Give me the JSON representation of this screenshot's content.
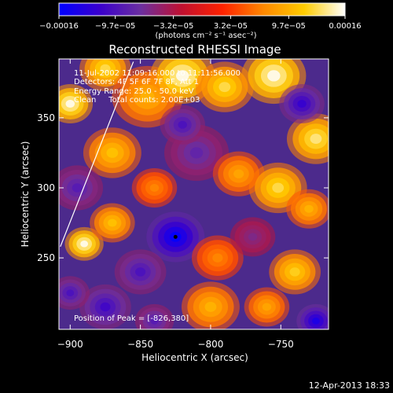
{
  "chart_data": {
    "type": "heatmap",
    "title": "Reconstructed RHESSI Image",
    "xlabel": "Heliocentric X (arcsec)",
    "ylabel": "Heliocentric Y (arcsec)",
    "xlim": [
      -908,
      -716
    ],
    "ylim": [
      199,
      392
    ],
    "x_ticks": [
      {
        "value": -900,
        "label": "−900"
      },
      {
        "value": -850,
        "label": "−850"
      },
      {
        "value": -800,
        "label": "−800"
      },
      {
        "value": -750,
        "label": "−750"
      }
    ],
    "y_ticks": [
      {
        "value": 250,
        "label": "250"
      },
      {
        "value": 300,
        "label": "300"
      },
      {
        "value": 350,
        "label": "350"
      }
    ],
    "colorbar": {
      "min": -0.00016,
      "max": 0.00016,
      "unit_label": "(photons cm⁻² s⁻¹ asec⁻²)",
      "ticks": [
        {
          "value": -0.00016,
          "label": "−0.00016"
        },
        {
          "value": -9.7e-05,
          "label": "−9.7e−05"
        },
        {
          "value": -3.2e-05,
          "label": "−3.2e−05"
        },
        {
          "value": 3.2e-05,
          "label": "3.2e−05"
        },
        {
          "value": 9.7e-05,
          "label": "9.7e−05"
        },
        {
          "value": 0.00016,
          "label": "0.00016"
        }
      ],
      "colors": [
        "#0000ff",
        "#3a00cc",
        "#6b2fa0",
        "#c01030",
        "#ff2200",
        "#ff8800",
        "#ffcc00",
        "#ffffff"
      ]
    },
    "annotations": [
      "11-Jul-2002 11:09:16.000 to 11:11:56.000",
      "Detectors: 4F 5F 6F 7F 8F, Att 1",
      "Energy Range: 25.0 - 50.0 keV",
      "Clean     Total counts: 2.00E+03"
    ],
    "peak_label": "Position of Peak = [-826,380]",
    "peak": {
      "x": -826,
      "y": 380
    },
    "minimum_marker": {
      "x": -825,
      "y": 265
    },
    "limb": {
      "x_start": -907,
      "y_start": 258,
      "x_end": -855,
      "y_end": 390
    },
    "blobs": [
      {
        "x": -900,
        "y": 360,
        "r": 14,
        "v": 0.00016
      },
      {
        "x": -875,
        "y": 385,
        "r": 16,
        "v": 0.00013
      },
      {
        "x": -845,
        "y": 365,
        "r": 22,
        "v": 0.0001
      },
      {
        "x": -820,
        "y": 380,
        "r": 20,
        "v": 0.00016
      },
      {
        "x": -790,
        "y": 372,
        "r": 18,
        "v": 0.00013
      },
      {
        "x": -755,
        "y": 380,
        "r": 20,
        "v": 0.00016
      },
      {
        "x": -725,
        "y": 335,
        "r": 18,
        "v": 0.00014
      },
      {
        "x": -735,
        "y": 360,
        "r": 14,
        "v": -0.00012
      },
      {
        "x": -870,
        "y": 325,
        "r": 18,
        "v": 0.00011
      },
      {
        "x": -840,
        "y": 300,
        "r": 14,
        "v": 7e-05
      },
      {
        "x": -810,
        "y": 325,
        "r": 20,
        "v": -8e-05
      },
      {
        "x": -780,
        "y": 310,
        "r": 16,
        "v": 9e-05
      },
      {
        "x": -752,
        "y": 300,
        "r": 18,
        "v": 0.00013
      },
      {
        "x": -730,
        "y": 285,
        "r": 14,
        "v": 0.0001
      },
      {
        "x": -895,
        "y": 300,
        "r": 16,
        "v": -9e-05
      },
      {
        "x": -890,
        "y": 260,
        "r": 12,
        "v": 0.00016
      },
      {
        "x": -870,
        "y": 275,
        "r": 14,
        "v": 0.00011
      },
      {
        "x": -825,
        "y": 265,
        "r": 18,
        "v": -0.00016
      },
      {
        "x": -850,
        "y": 240,
        "r": 16,
        "v": -0.0001
      },
      {
        "x": -795,
        "y": 250,
        "r": 16,
        "v": 7e-05
      },
      {
        "x": -770,
        "y": 265,
        "r": 14,
        "v": -6e-05
      },
      {
        "x": -740,
        "y": 240,
        "r": 16,
        "v": 0.00012
      },
      {
        "x": -800,
        "y": 215,
        "r": 18,
        "v": 0.0001
      },
      {
        "x": -760,
        "y": 215,
        "r": 14,
        "v": 9e-05
      },
      {
        "x": -875,
        "y": 215,
        "r": 16,
        "v": -0.00011
      },
      {
        "x": -900,
        "y": 225,
        "r": 12,
        "v": -0.0001
      },
      {
        "x": -840,
        "y": 205,
        "r": 12,
        "v": -9e-05
      },
      {
        "x": -725,
        "y": 205,
        "r": 12,
        "v": -0.00014
      },
      {
        "x": -820,
        "y": 345,
        "r": 14,
        "v": -0.0001
      }
    ]
  },
  "footer": {
    "date_label": "12-Apr-2013 18:33"
  }
}
